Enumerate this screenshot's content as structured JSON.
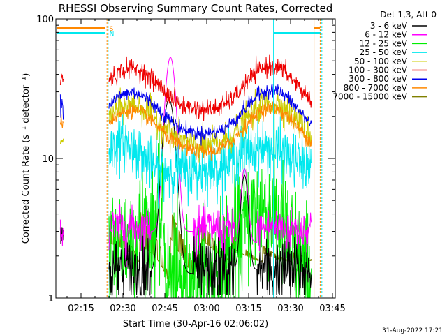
{
  "chart_data": {
    "type": "line",
    "title": "RHESSI Observing Summary Count Rates, Corrected",
    "xlabel": "Start Time (30-Apr-16 02:06:02)",
    "ylabel": "Corrected Count Rate (s⁻¹ detector⁻¹)",
    "yscale": "log",
    "ylim": [
      1,
      100
    ],
    "xlim_minutes": [
      6.0,
      106.0
    ],
    "x_ticks": [
      {
        "min": 15,
        "label": "02:15"
      },
      {
        "min": 30,
        "label": "02:30"
      },
      {
        "min": 45,
        "label": "02:45"
      },
      {
        "min": 60,
        "label": "03:00"
      },
      {
        "min": 75,
        "label": "03:15"
      },
      {
        "min": 90,
        "label": "03:30"
      },
      {
        "min": 105,
        "label": "03:45"
      }
    ],
    "y_ticks": [
      {
        "value": 1,
        "label": "1"
      },
      {
        "value": 10,
        "label": "10"
      },
      {
        "value": 100,
        "label": "100"
      }
    ],
    "legend_title": "Det 1,3, Att 0",
    "legend_position": "right",
    "series": [
      {
        "name": "3 - 6 keV",
        "color": "#000000",
        "key": "s1"
      },
      {
        "name": "6 - 12 keV",
        "color": "#ff00ff",
        "key": "s2"
      },
      {
        "name": "12 - 25 keV",
        "color": "#00ee00",
        "key": "s3"
      },
      {
        "name": "25 - 50 keV",
        "color": "#00e8ee",
        "key": "s4"
      },
      {
        "name": "50 - 100 keV",
        "color": "#cccc00",
        "key": "s5"
      },
      {
        "name": "100 - 300 keV",
        "color": "#ee0000",
        "key": "s6"
      },
      {
        "name": "300 - 800 keV",
        "color": "#0000ee",
        "key": "s7"
      },
      {
        "name": "800 - 7000 keV",
        "color": "#ff8800",
        "key": "s8"
      },
      {
        "name": "7000 - 15000 keV",
        "color": "#808000",
        "key": "s9"
      }
    ],
    "flag_labels": [
      {
        "text": "S",
        "color": "#ff8800"
      },
      {
        "text": "N",
        "color": "#00e8ee"
      }
    ],
    "footer_date": "31-Aug-2022 17:21"
  }
}
